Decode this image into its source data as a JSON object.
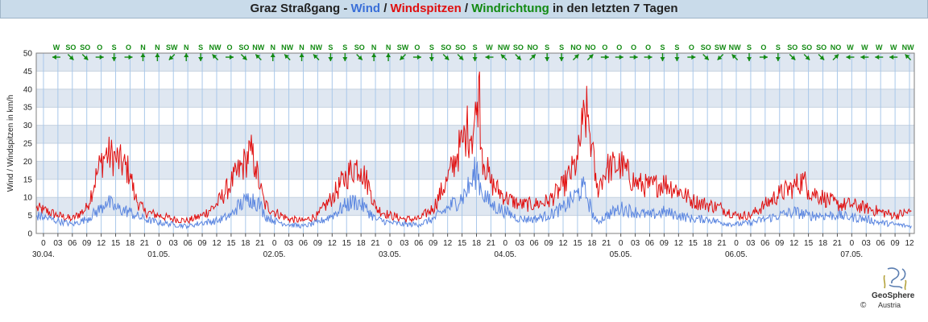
{
  "header": {
    "parts": [
      {
        "text": "Graz Straßgang - ",
        "color": "#222222"
      },
      {
        "text": "Wind",
        "color": "#3a6fd8"
      },
      {
        "text": " / ",
        "color": "#222222"
      },
      {
        "text": "Windspitzen",
        "color": "#e01010"
      },
      {
        "text": " / ",
        "color": "#222222"
      },
      {
        "text": "Windrichtung",
        "color": "#128a12"
      },
      {
        "text": " in den letzten 7 Tagen",
        "color": "#222222"
      }
    ]
  },
  "chart_data": {
    "type": "line",
    "ylabel": "Wind / Windspitzen in km/h",
    "ylim": [
      0,
      50
    ],
    "yticks": [
      0,
      5,
      10,
      15,
      20,
      25,
      30,
      35,
      40,
      45,
      50
    ],
    "x_unit": "hours since 30.04. 00:00",
    "xlim": [
      -1.5,
      181
    ],
    "xticks": [
      0,
      3,
      6,
      9,
      12,
      15,
      18,
      21,
      24,
      27,
      30,
      33,
      36,
      39,
      42,
      45,
      48,
      51,
      54,
      57,
      60,
      63,
      66,
      69,
      72,
      75,
      78,
      81,
      84,
      87,
      90,
      93,
      96,
      99,
      102,
      105,
      108,
      111,
      114,
      117,
      120,
      123,
      126,
      129,
      132,
      135,
      138,
      141,
      144,
      147,
      150,
      153,
      156,
      159,
      162,
      165,
      168,
      171,
      174,
      177,
      180
    ],
    "xtick_labels": [
      "0",
      "03",
      "06",
      "09",
      "12",
      "15",
      "18",
      "21",
      "0",
      "03",
      "06",
      "09",
      "12",
      "15",
      "18",
      "21",
      "0",
      "03",
      "06",
      "09",
      "12",
      "15",
      "18",
      "21",
      "0",
      "03",
      "06",
      "09",
      "12",
      "15",
      "18",
      "21",
      "0",
      "03",
      "06",
      "09",
      "12",
      "15",
      "18",
      "21",
      "0",
      "03",
      "06",
      "09",
      "12",
      "15",
      "18",
      "21",
      "0",
      "03",
      "06",
      "09",
      "12",
      "15",
      "18",
      "21",
      "0",
      "03",
      "06",
      "09",
      "12"
    ],
    "date_labels": [
      {
        "x": 0,
        "label": "30.04."
      },
      {
        "x": 24,
        "label": "01.05."
      },
      {
        "x": 48,
        "label": "02.05."
      },
      {
        "x": 72,
        "label": "03.05."
      },
      {
        "x": 96,
        "label": "04.05."
      },
      {
        "x": 120,
        "label": "05.05."
      },
      {
        "x": 144,
        "label": "06.05."
      },
      {
        "x": 168,
        "label": "07.05."
      }
    ],
    "grid": true,
    "band_color": "#dfe7f1",
    "series": [
      {
        "name": "Wind",
        "color": "#5b86e0",
        "points": [
          [
            -1.5,
            5
          ],
          [
            0,
            4.5
          ],
          [
            3,
            3.5
          ],
          [
            6,
            2.5
          ],
          [
            9,
            4
          ],
          [
            12,
            7
          ],
          [
            13,
            9
          ],
          [
            15,
            7
          ],
          [
            18,
            6
          ],
          [
            19,
            5
          ],
          [
            21,
            4
          ],
          [
            24,
            3
          ],
          [
            27,
            2.5
          ],
          [
            30,
            2
          ],
          [
            33,
            3
          ],
          [
            36,
            3.5
          ],
          [
            39,
            5
          ],
          [
            40,
            7
          ],
          [
            42,
            9
          ],
          [
            43,
            10
          ],
          [
            45,
            8
          ],
          [
            46,
            5
          ],
          [
            48,
            3.5
          ],
          [
            51,
            2.5
          ],
          [
            54,
            2
          ],
          [
            57,
            3
          ],
          [
            60,
            5
          ],
          [
            63,
            8
          ],
          [
            65,
            9
          ],
          [
            67,
            7
          ],
          [
            69,
            4
          ],
          [
            72,
            3
          ],
          [
            75,
            2.5
          ],
          [
            78,
            2.5
          ],
          [
            81,
            4
          ],
          [
            84,
            7
          ],
          [
            87,
            10
          ],
          [
            89,
            14
          ],
          [
            90,
            18
          ],
          [
            91,
            12
          ],
          [
            93,
            8
          ],
          [
            96,
            6
          ],
          [
            99,
            4
          ],
          [
            102,
            4
          ],
          [
            105,
            5
          ],
          [
            108,
            7
          ],
          [
            111,
            11
          ],
          [
            112,
            13
          ],
          [
            113,
            10
          ],
          [
            114,
            6
          ],
          [
            115,
            3
          ],
          [
            117,
            5
          ],
          [
            120,
            7
          ],
          [
            123,
            6
          ],
          [
            126,
            5
          ],
          [
            129,
            6
          ],
          [
            132,
            5
          ],
          [
            135,
            4
          ],
          [
            138,
            4
          ],
          [
            141,
            3
          ],
          [
            144,
            2.5
          ],
          [
            147,
            3
          ],
          [
            150,
            4
          ],
          [
            153,
            5
          ],
          [
            156,
            6
          ],
          [
            159,
            5
          ],
          [
            162,
            5
          ],
          [
            165,
            5
          ],
          [
            168,
            4.5
          ],
          [
            171,
            4
          ],
          [
            174,
            3
          ],
          [
            177,
            2.5
          ],
          [
            180,
            2
          ]
        ]
      },
      {
        "name": "Windspitzen",
        "color": "#e01010",
        "points": [
          [
            -1.5,
            7
          ],
          [
            0,
            6.5
          ],
          [
            3,
            5
          ],
          [
            6,
            4
          ],
          [
            9,
            7
          ],
          [
            11,
            16
          ],
          [
            12,
            20
          ],
          [
            13,
            22
          ],
          [
            15,
            21
          ],
          [
            18,
            17
          ],
          [
            19,
            10
          ],
          [
            21,
            6
          ],
          [
            24,
            5
          ],
          [
            27,
            4
          ],
          [
            30,
            3.5
          ],
          [
            33,
            5
          ],
          [
            36,
            8
          ],
          [
            39,
            14
          ],
          [
            42,
            20
          ],
          [
            43,
            23
          ],
          [
            44,
            19
          ],
          [
            45,
            13
          ],
          [
            46,
            8
          ],
          [
            48,
            6
          ],
          [
            51,
            4
          ],
          [
            54,
            3.5
          ],
          [
            57,
            5
          ],
          [
            60,
            10
          ],
          [
            63,
            16
          ],
          [
            65,
            19
          ],
          [
            66,
            18
          ],
          [
            68,
            12
          ],
          [
            69,
            7
          ],
          [
            72,
            5
          ],
          [
            75,
            4
          ],
          [
            78,
            4
          ],
          [
            81,
            7
          ],
          [
            84,
            15
          ],
          [
            86,
            22
          ],
          [
            87,
            25
          ],
          [
            88,
            29
          ],
          [
            89,
            27
          ],
          [
            90,
            33
          ],
          [
            90.5,
            44
          ],
          [
            91,
            23
          ],
          [
            93,
            14
          ],
          [
            96,
            10
          ],
          [
            99,
            8
          ],
          [
            102,
            8
          ],
          [
            105,
            9
          ],
          [
            108,
            13
          ],
          [
            111,
            20
          ],
          [
            112,
            30
          ],
          [
            113,
            33
          ],
          [
            114,
            24
          ],
          [
            115,
            12
          ],
          [
            117,
            18
          ],
          [
            120,
            19
          ],
          [
            123,
            14
          ],
          [
            126,
            13
          ],
          [
            129,
            14
          ],
          [
            132,
            12
          ],
          [
            135,
            9
          ],
          [
            138,
            8
          ],
          [
            141,
            7
          ],
          [
            144,
            5
          ],
          [
            147,
            5
          ],
          [
            150,
            8
          ],
          [
            153,
            11
          ],
          [
            156,
            13
          ],
          [
            158,
            15
          ],
          [
            159,
            12
          ],
          [
            162,
            10
          ],
          [
            165,
            8
          ],
          [
            168,
            8
          ],
          [
            171,
            7
          ],
          [
            174,
            6
          ],
          [
            177,
            5
          ],
          [
            180,
            6
          ]
        ]
      }
    ],
    "wind_directions": [
      {
        "x": 0,
        "label": "W",
        "angle": 90
      },
      {
        "x": 3,
        "label": "SO",
        "angle": 315
      },
      {
        "x": 6,
        "label": "SO",
        "angle": 315
      },
      {
        "x": 9,
        "label": "O",
        "angle": 270
      },
      {
        "x": 12,
        "label": "S",
        "angle": 0
      },
      {
        "x": 15,
        "label": "O",
        "angle": 270
      },
      {
        "x": 18,
        "label": "N",
        "angle": 180
      },
      {
        "x": 21,
        "label": "N",
        "angle": 180
      },
      {
        "x": 24,
        "label": "SW",
        "angle": 45
      },
      {
        "x": 27,
        "label": "N",
        "angle": 180
      },
      {
        "x": 30,
        "label": "S",
        "angle": 0
      },
      {
        "x": 33,
        "label": "NW",
        "angle": 135
      },
      {
        "x": 36,
        "label": "O",
        "angle": 270
      },
      {
        "x": 39,
        "label": "SO",
        "angle": 315
      },
      {
        "x": 42,
        "label": "NW",
        "angle": 135
      },
      {
        "x": 45,
        "label": "N",
        "angle": 180
      },
      {
        "x": 48,
        "label": "NW",
        "angle": 135
      },
      {
        "x": 51,
        "label": "N",
        "angle": 180
      },
      {
        "x": 54,
        "label": "NW",
        "angle": 135
      },
      {
        "x": 57,
        "label": "S",
        "angle": 0
      },
      {
        "x": 60,
        "label": "S",
        "angle": 0
      },
      {
        "x": 63,
        "label": "SO",
        "angle": 315
      },
      {
        "x": 66,
        "label": "N",
        "angle": 180
      },
      {
        "x": 69,
        "label": "N",
        "angle": 180
      },
      {
        "x": 72,
        "label": "SW",
        "angle": 45
      },
      {
        "x": 75,
        "label": "O",
        "angle": 270
      },
      {
        "x": 78,
        "label": "S",
        "angle": 0
      },
      {
        "x": 81,
        "label": "SO",
        "angle": 315
      },
      {
        "x": 84,
        "label": "SO",
        "angle": 315
      },
      {
        "x": 87,
        "label": "S",
        "angle": 0
      },
      {
        "x": 90,
        "label": "W",
        "angle": 90
      },
      {
        "x": 93,
        "label": "NW",
        "angle": 135
      },
      {
        "x": 96,
        "label": "SO",
        "angle": 315
      },
      {
        "x": 99,
        "label": "NO",
        "angle": 225
      },
      {
        "x": 102,
        "label": "S",
        "angle": 0
      },
      {
        "x": 105,
        "label": "S",
        "angle": 0
      },
      {
        "x": 108,
        "label": "NO",
        "angle": 225
      },
      {
        "x": 111,
        "label": "NO",
        "angle": 225
      },
      {
        "x": 114,
        "label": "O",
        "angle": 270
      },
      {
        "x": 117,
        "label": "O",
        "angle": 270
      },
      {
        "x": 120,
        "label": "O",
        "angle": 270
      },
      {
        "x": 123,
        "label": "O",
        "angle": 270
      },
      {
        "x": 126,
        "label": "S",
        "angle": 0
      },
      {
        "x": 129,
        "label": "S",
        "angle": 0
      },
      {
        "x": 132,
        "label": "O",
        "angle": 270
      },
      {
        "x": 135,
        "label": "SO",
        "angle": 315
      },
      {
        "x": 138,
        "label": "SW",
        "angle": 45
      },
      {
        "x": 141,
        "label": "NW",
        "angle": 135
      },
      {
        "x": 144,
        "label": "S",
        "angle": 0
      },
      {
        "x": 147,
        "label": "O",
        "angle": 270
      },
      {
        "x": 150,
        "label": "S",
        "angle": 0
      },
      {
        "x": 153,
        "label": "SO",
        "angle": 315
      },
      {
        "x": 156,
        "label": "SO",
        "angle": 315
      },
      {
        "x": 159,
        "label": "SO",
        "angle": 315
      },
      {
        "x": 162,
        "label": "NO",
        "angle": 225
      },
      {
        "x": 165,
        "label": "W",
        "angle": 90
      },
      {
        "x": 168,
        "label": "W",
        "angle": 90
      },
      {
        "x": 171,
        "label": "W",
        "angle": 90
      },
      {
        "x": 174,
        "label": "W",
        "angle": 90
      },
      {
        "x": 177,
        "label": "NW",
        "angle": 135
      }
    ]
  },
  "logo": {
    "name": "GeoSphere",
    "country": "Austria",
    "copyright": "©"
  }
}
